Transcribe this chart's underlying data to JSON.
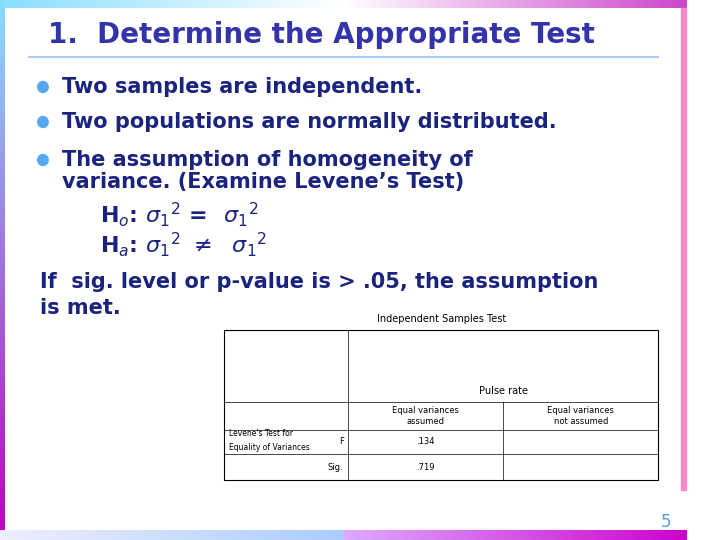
{
  "title": "1.  Determine the Appropriate Test",
  "title_color": "#3333AA",
  "title_fontsize": 20,
  "bg_color": "#FFFFFF",
  "text_color": "#1A237E",
  "body_fontsize": 15,
  "bullet_color": "#55AAEE",
  "bullets": [
    "Two samples are independent.",
    "Two populations are normally distributed.",
    "The assumption of homogeneity of\n    variance. (Examine Levene’s Test)"
  ],
  "page_number": "5",
  "table_title": "Independent Samples Test",
  "table_col1": "Pulse rate",
  "table_col2": "Equal variances\nassumed",
  "table_col3": "Equal variances\nnot assumed",
  "table_row1_label": "Levene's Test for\nEquality of Variances",
  "table_row1_sub1": "F",
  "table_row1_sub2": "Sig.",
  "table_val1": ".134",
  "table_val2": ".719",
  "top_bar_left": "#88DDFF",
  "top_bar_right": "#CC44CC",
  "left_bar_top": "#88DDFF",
  "left_bar_bottom": "#BB22BB",
  "right_bar_color": "#FF88CC",
  "bottom_bar_left_start": "#EEEEFF",
  "bottom_bar_left_end": "#AACCFF",
  "bottom_bar_right_start": "#DDAAFF",
  "bottom_bar_right_end": "#CC00CC"
}
